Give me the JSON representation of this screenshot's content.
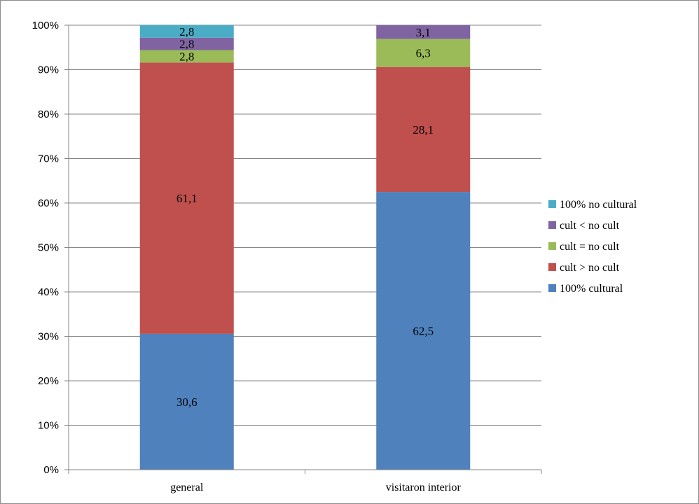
{
  "chart_data": {
    "type": "bar",
    "stacked": true,
    "percent_stacked": true,
    "categories": [
      "general",
      "visitaron interior"
    ],
    "series": [
      {
        "name": "100% cultural",
        "values": [
          30.6,
          62.5
        ],
        "labels": [
          "30,6",
          "62,5"
        ],
        "color": "#4f81bd"
      },
      {
        "name": "cult > no cult",
        "values": [
          61.1,
          28.1
        ],
        "labels": [
          "61,1",
          "28,1"
        ],
        "color": "#c0504d"
      },
      {
        "name": "cult = no cult",
        "values": [
          2.8,
          6.3
        ],
        "labels": [
          "2,8",
          "6,3"
        ],
        "color": "#9bbb59"
      },
      {
        "name": "cult < no cult",
        "values": [
          2.8,
          3.1
        ],
        "labels": [
          "2,8",
          "3,1"
        ],
        "color": "#8064a2"
      },
      {
        "name": "100% no cultural",
        "values": [
          2.8,
          0
        ],
        "labels": [
          "2,8",
          ""
        ],
        "color": "#4bacc6"
      }
    ],
    "y_ticks": [
      "0%",
      "10%",
      "20%",
      "30%",
      "40%",
      "50%",
      "60%",
      "70%",
      "80%",
      "90%",
      "100%"
    ],
    "ylim": [
      0,
      100
    ],
    "grid": true,
    "legend": "right",
    "xlabel": "",
    "ylabel": "",
    "title": ""
  }
}
